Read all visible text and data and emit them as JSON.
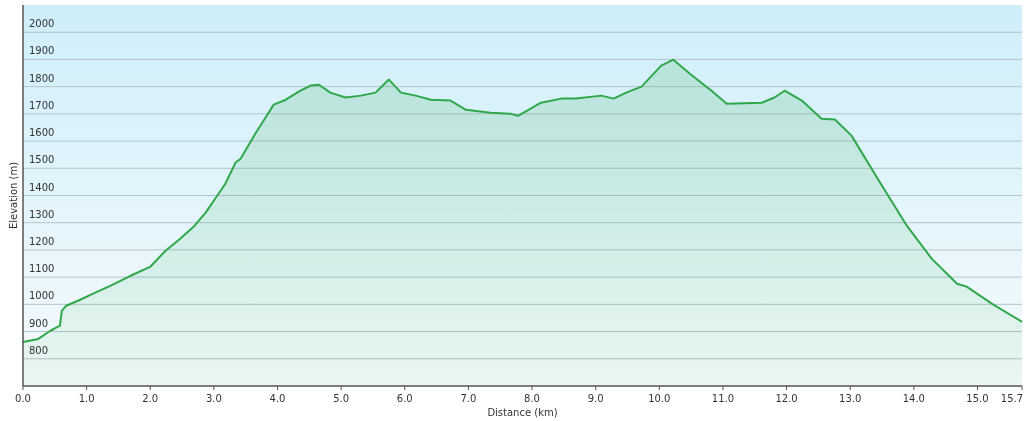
{
  "chart_data": {
    "type": "area",
    "xlabel": "Distance  (km)",
    "ylabel": "Elevation (m)",
    "xlim": [
      0,
      15.7
    ],
    "xticks": [
      {
        "value": 0,
        "label": "0.0"
      },
      {
        "value": 1,
        "label": "1.0"
      },
      {
        "value": 2,
        "label": "2.0"
      },
      {
        "value": 3,
        "label": "3.0"
      },
      {
        "value": 4,
        "label": "4.0"
      },
      {
        "value": 5,
        "label": "5.0"
      },
      {
        "value": 6,
        "label": "6.0"
      },
      {
        "value": 7,
        "label": "7.0"
      },
      {
        "value": 8,
        "label": "8.0"
      },
      {
        "value": 9,
        "label": "9.0"
      },
      {
        "value": 10,
        "label": "10.0"
      },
      {
        "value": 11,
        "label": "11.0"
      },
      {
        "value": 12,
        "label": "12.0"
      },
      {
        "value": 13,
        "label": "13.0"
      },
      {
        "value": 14,
        "label": "14.0"
      },
      {
        "value": 15,
        "label": "15.0"
      },
      {
        "value": 15.7,
        "label": "15.7"
      }
    ],
    "ylim": [
      700,
      2100
    ],
    "yticks": [
      800,
      900,
      1000,
      1100,
      1200,
      1300,
      1400,
      1500,
      1600,
      1700,
      1800,
      1900,
      2000
    ],
    "grid": "y",
    "series": [
      {
        "color": "#2ea84a",
        "x": [
          0,
          0.24,
          0.43,
          0.55,
          0.58,
          0.61,
          0.68,
          0.9,
          1.06,
          1.37,
          1.69,
          1.97,
          2.0,
          2.24,
          2.47,
          2.68,
          2.87,
          3.02,
          3.18,
          3.34,
          3.42,
          3.65,
          3.81,
          3.94,
          4.13,
          4.36,
          4.52,
          4.65,
          4.83,
          5.07,
          5.31,
          5.54,
          5.75,
          5.94,
          6.17,
          6.41,
          6.72,
          6.96,
          7.35,
          7.67,
          7.78,
          8.14,
          8.46,
          8.69,
          9.09,
          9.28,
          9.48,
          9.72,
          10.03,
          10.22,
          10.5,
          10.82,
          11.06,
          11.61,
          11.81,
          11.97,
          12.24,
          12.55,
          12.76,
          13.02,
          13.5,
          13.89,
          14.28,
          14.68,
          14.83,
          15.23,
          15.7
        ],
        "values": [
          862,
          873,
          903,
          918,
          921,
          976,
          995,
          1017,
          1035,
          1068,
          1105,
          1135,
          1138,
          1197,
          1241,
          1285,
          1337,
          1388,
          1443,
          1521,
          1535,
          1627,
          1686,
          1734,
          1752,
          1785,
          1804,
          1807,
          1778,
          1760,
          1767,
          1778,
          1826,
          1778,
          1767,
          1752,
          1749,
          1715,
          1704,
          1700,
          1693,
          1741,
          1756,
          1756,
          1767,
          1756,
          1778,
          1800,
          1877,
          1899,
          1844,
          1785,
          1737,
          1741,
          1760,
          1785,
          1749,
          1682,
          1679,
          1620,
          1436,
          1289,
          1168,
          1076,
          1065,
          1002,
          936
        ]
      }
    ]
  }
}
